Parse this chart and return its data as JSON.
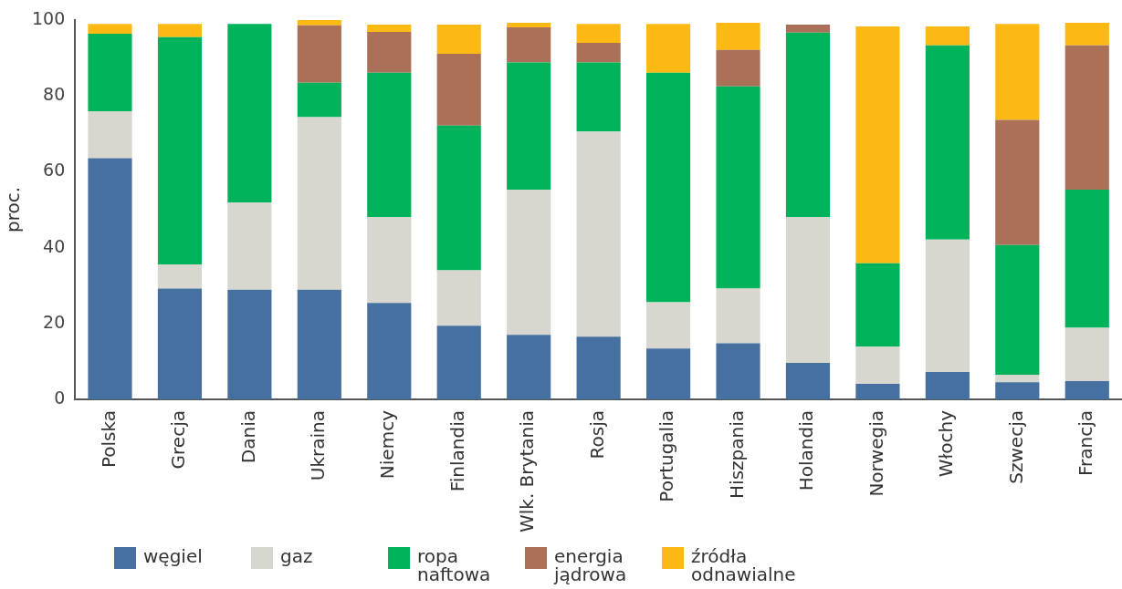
{
  "chart_data": {
    "type": "bar",
    "stacked": true,
    "ylabel": "proc.",
    "categories": [
      "Polska",
      "Grecja",
      "Dania",
      "Ukraina",
      "Niemcy",
      "Finlandia",
      "Wlk. Brytania",
      "Rosja",
      "Portugalia",
      "Hiszpania",
      "Holandia",
      "Norwegia",
      "Włochy",
      "Szwecja",
      "Francja"
    ],
    "series": [
      {
        "name": "węgiel",
        "color": "#4570a0",
        "values": [
          63.6,
          29.2,
          28.9,
          28.9,
          25.4,
          19.4,
          17.0,
          16.5,
          13.4,
          14.8,
          9.6,
          4.1,
          7.2,
          4.5,
          4.8
        ]
      },
      {
        "name": "gaz",
        "color": "#d7d7cf",
        "values": [
          12.3,
          6.4,
          23.0,
          45.5,
          22.7,
          14.6,
          38.3,
          54.1,
          12.2,
          14.4,
          38.5,
          9.8,
          34.9,
          2.0,
          14.1
        ]
      },
      {
        "name": "ropa naftowa",
        "color": "#00b259",
        "values": [
          20.5,
          59.9,
          47.1,
          9.1,
          38.0,
          38.2,
          33.5,
          18.2,
          60.5,
          53.3,
          48.6,
          22.0,
          51.2,
          34.2,
          36.4
        ]
      },
      {
        "name": "energia jądrowa",
        "color": "#ab7158",
        "values": [
          0,
          0,
          0,
          15.1,
          10.8,
          18.9,
          9.3,
          5.2,
          0,
          9.6,
          2.1,
          0,
          0,
          33.0,
          38.0
        ]
      },
      {
        "name": "źródła odnawialne",
        "color": "#fcb813",
        "values": [
          2.6,
          3.5,
          0,
          1.4,
          1.9,
          7.7,
          1.2,
          5.0,
          12.9,
          7.2,
          0,
          62.4,
          5.0,
          25.3,
          6.0
        ]
      }
    ],
    "ylim": [
      0,
      100
    ],
    "yticks": [
      0,
      20,
      40,
      60,
      80,
      100
    ],
    "grid": false,
    "legend": "bottom"
  }
}
